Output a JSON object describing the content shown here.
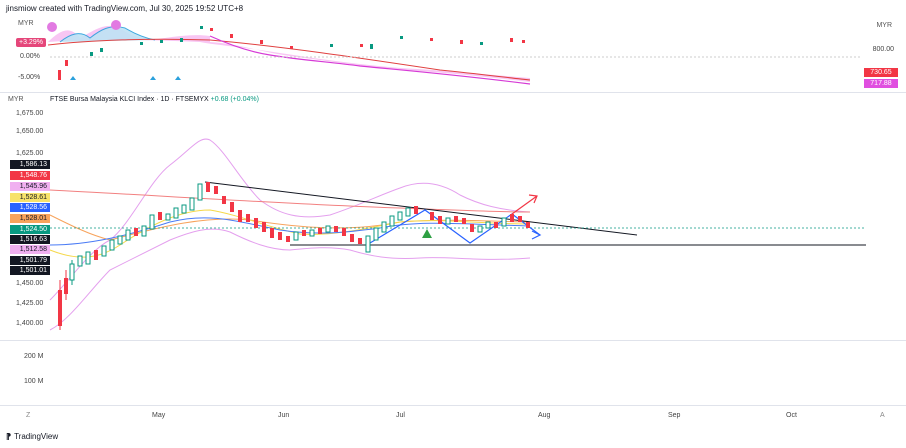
{
  "header": {
    "text": "jinsmiow created with TradingView.com, Jul 30, 2025 19:52 UTC+8"
  },
  "top_panel": {
    "currency_left": "MYR",
    "currency_right": "MYR",
    "pct_badge": "+3.29%",
    "pct_labels": [
      "0.00%",
      "-5.00%"
    ],
    "right_value": "800.00",
    "badges": [
      {
        "label": "730.65",
        "color": "#f23645"
      },
      {
        "label": "717.88",
        "color": "#e04fe0"
      }
    ]
  },
  "main_panel": {
    "currency": "MYR",
    "title": "FTSE Bursa Malaysia KLCI Index · 1D · FTSEMYX",
    "change": "+0.68 (+0.04%)",
    "y_labels": [
      "1,675.00",
      "1,650.00",
      "1,625.00",
      "1,450.00",
      "1,425.00",
      "1,400.00"
    ],
    "price_badges": [
      {
        "label": "1,586.13",
        "bg": "#131722",
        "fg": "#ffffff"
      },
      {
        "label": "1,548.76",
        "bg": "#f23645",
        "fg": "#ffffff"
      },
      {
        "label": "1,545.96",
        "bg": "#f0b0f0",
        "fg": "#131722"
      },
      {
        "label": "1,528.61",
        "bg": "#f7e26b",
        "fg": "#131722"
      },
      {
        "label": "1,528.56",
        "bg": "#2962ff",
        "fg": "#ffffff"
      },
      {
        "label": "1,528.01",
        "bg": "#f7a35c",
        "fg": "#131722"
      },
      {
        "label": "1,524.50",
        "bg": "#089981",
        "fg": "#ffffff"
      },
      {
        "label": "1,516.63",
        "bg": "#131722",
        "fg": "#ffffff"
      },
      {
        "label": "1,512.58",
        "bg": "#f0b0f0",
        "fg": "#131722"
      },
      {
        "label": "1,501.79",
        "bg": "#131722",
        "fg": "#ffffff"
      },
      {
        "label": "1,501.01",
        "bg": "#131722",
        "fg": "#ffffff"
      }
    ]
  },
  "volume_panel": {
    "labels": [
      "200 M",
      "100 M"
    ]
  },
  "time_axis": {
    "z_label": "Z",
    "a_label": "A",
    "months": [
      "May",
      "Jun",
      "Jul",
      "Aug",
      "Sep",
      "Oct"
    ]
  },
  "footer": {
    "brand": "TradingView"
  },
  "colors": {
    "up": "#089981",
    "down": "#f23645",
    "accent": "#2962ff"
  }
}
